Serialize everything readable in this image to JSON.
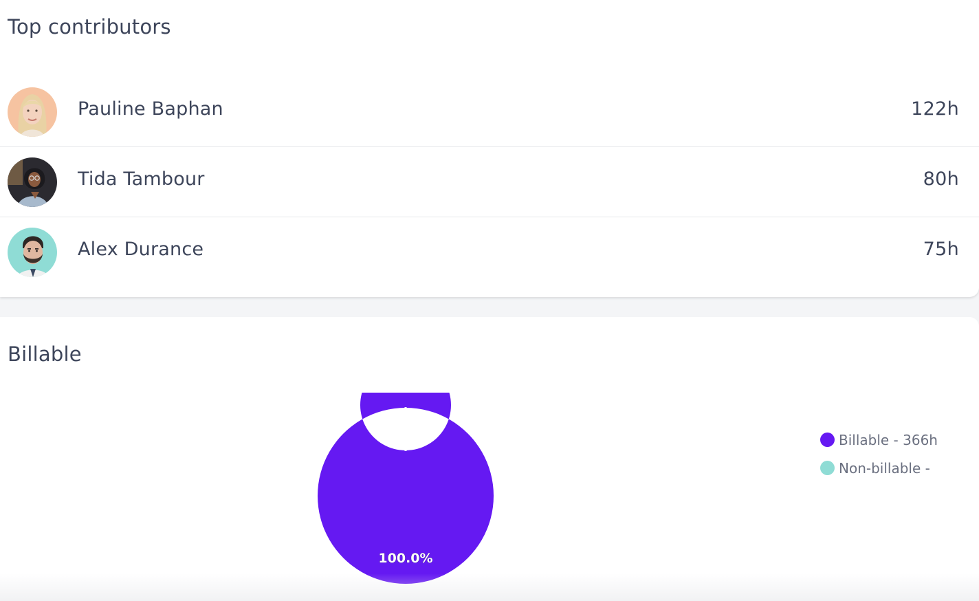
{
  "contributors": {
    "title": "Top contributors",
    "items": [
      {
        "name": "Pauline Baphan",
        "hours": "122h",
        "avatar_bg": "#f6c3a1",
        "avatar": "woman-blonde-avatar"
      },
      {
        "name": "Tida Tambour",
        "hours": "80h",
        "avatar_bg": "#2b2a30",
        "avatar": "woman-glasses-avatar"
      },
      {
        "name": "Alex Durance",
        "hours": "75h",
        "avatar_bg": "#8fdcd5",
        "avatar": "man-beard-avatar"
      }
    ]
  },
  "billable": {
    "title": "Billable",
    "legend": [
      {
        "label": "Billable - 366h",
        "color": "#6519f2"
      },
      {
        "label": "Non-billable -",
        "color": "#8fdcd5"
      }
    ]
  },
  "chart_data": {
    "type": "pie",
    "donut": true,
    "categories": [
      "Billable",
      "Non-billable"
    ],
    "values": [
      366,
      0
    ],
    "colors": [
      "#6519f2",
      "#8fdcd5"
    ],
    "data_labels": [
      "100.0%"
    ],
    "legend_position": "right"
  }
}
